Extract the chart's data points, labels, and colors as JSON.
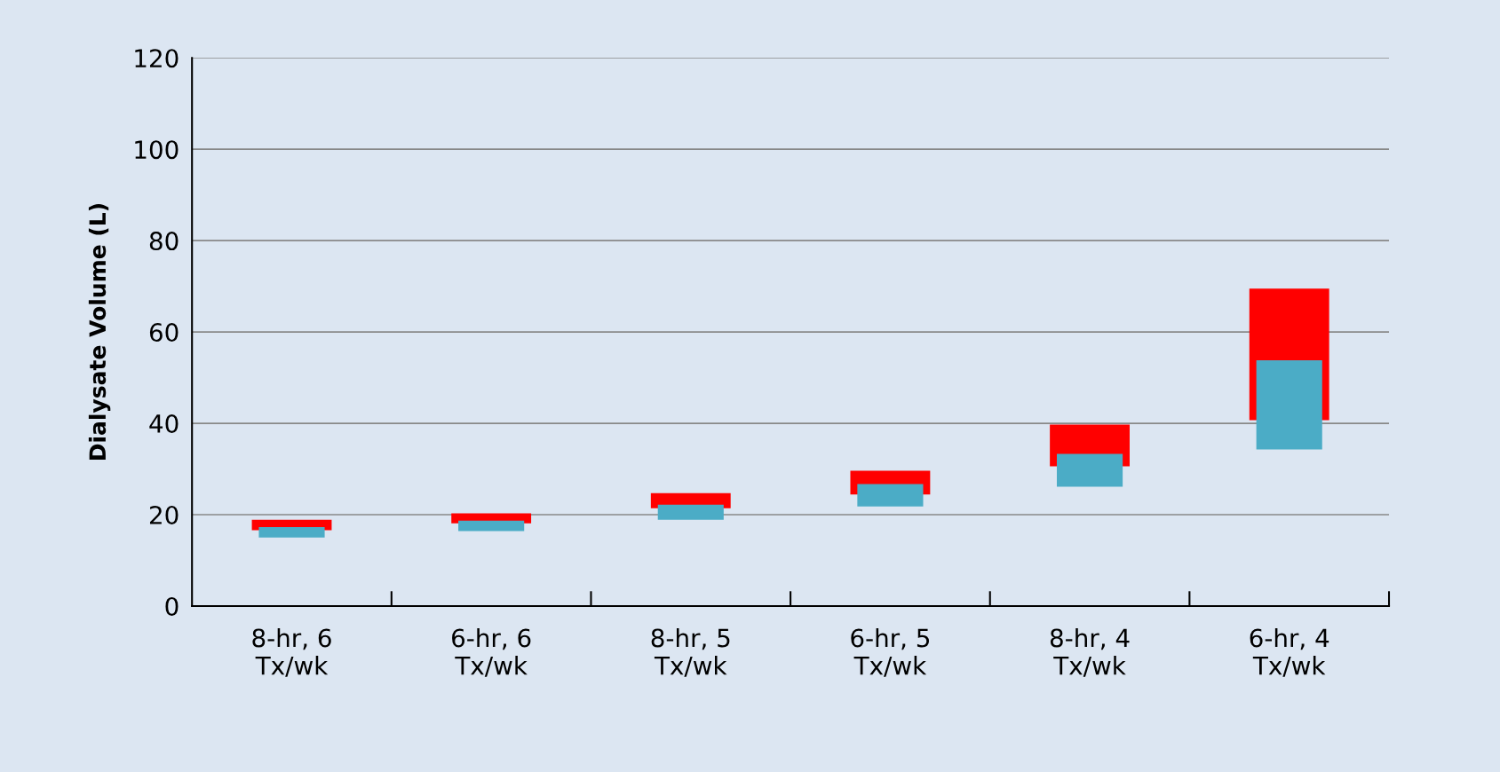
{
  "chart_data": {
    "type": "bar",
    "ylabel": "Dialysate Volume (L)",
    "categories": [
      "8-hr, 6\nTx/wk",
      "6-hr, 6\nTx/wk",
      "8-hr, 5\nTx/wk",
      "6-hr, 5\nTx/wk",
      "8-hr, 4\nTx/wk",
      "6-hr, 4\nTx/wk"
    ],
    "series": [
      {
        "color": "#ff0000",
        "base": [
          16.6,
          18.1,
          21.4,
          24.4,
          30.6,
          40.7
        ],
        "values": [
          2.3,
          2.2,
          3.3,
          5.2,
          9.1,
          28.8
        ]
      },
      {
        "color": "#4bacc6",
        "base": [
          15.0,
          16.4,
          18.9,
          21.8,
          26.1,
          34.3
        ],
        "values": [
          2.3,
          2.3,
          3.3,
          4.9,
          7.2,
          19.5
        ]
      }
    ],
    "ylim": [
      0,
      120
    ],
    "yticks": [
      0,
      20,
      40,
      60,
      80,
      100,
      120
    ],
    "grid": "y"
  }
}
